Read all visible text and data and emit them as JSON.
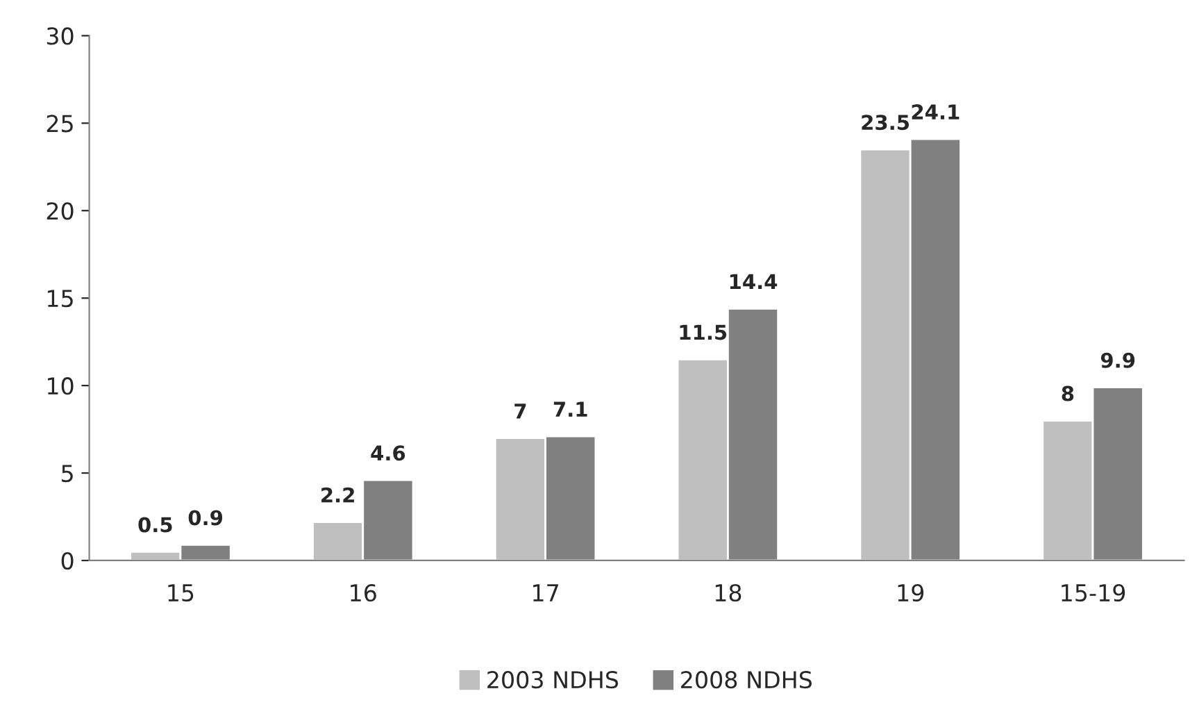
{
  "chart_data": {
    "type": "bar",
    "categories": [
      "15",
      "16",
      "17",
      "18",
      "19",
      "15-19"
    ],
    "series": [
      {
        "name": "2003 NDHS",
        "color": "#bfbfbf",
        "values": [
          0.5,
          2.2,
          7,
          11.5,
          23.5,
          8
        ]
      },
      {
        "name": "2008 NDHS",
        "color": "#808080",
        "values": [
          0.9,
          4.6,
          7.1,
          14.4,
          24.1,
          9.9
        ]
      }
    ],
    "ylim": [
      0,
      30
    ],
    "yticks": [
      0,
      5,
      10,
      15,
      20,
      25,
      30
    ],
    "data_labels": true,
    "grid": false,
    "legend": "bottom"
  }
}
